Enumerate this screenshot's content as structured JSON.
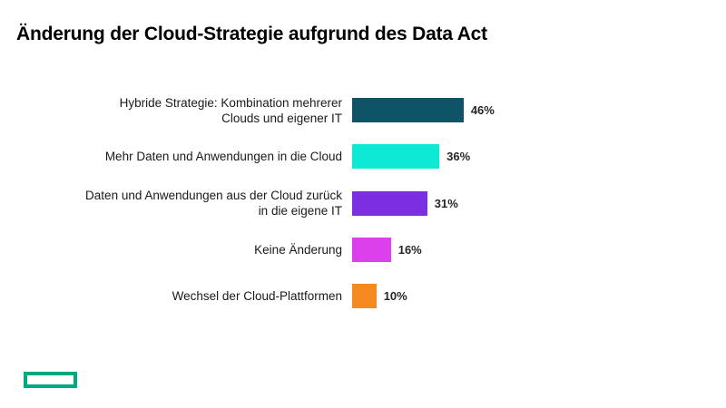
{
  "header": {
    "title": "Änderung der Cloud-Strategie aufgrund des Data Act"
  },
  "chart_data": {
    "type": "bar",
    "orientation": "horizontal",
    "title": "Änderung der Cloud-Strategie aufgrund des Data Act",
    "categories": [
      "Hybride Strategie: Kombination mehrerer\nClouds und eigener IT",
      "Mehr Daten und Anwendungen in die Cloud",
      "Daten und Anwendungen aus der Cloud zurück\nin die eigene IT",
      "Keine Änderung",
      "Wechsel der Cloud-Plattformen"
    ],
    "values": [
      46,
      36,
      31,
      16,
      10
    ],
    "value_labels": [
      "46%",
      "36%",
      "31%",
      "16%",
      "10%"
    ],
    "unit": "%",
    "xlim": [
      0,
      100
    ],
    "grid": false,
    "legend": false,
    "bar_colors": [
      "#0e5366",
      "#0de9d4",
      "#7c2fe0",
      "#dc40ec",
      "#f6891f"
    ],
    "value_label_position": "right-of-bar"
  },
  "footer": {
    "logo_color": "#01a982"
  }
}
